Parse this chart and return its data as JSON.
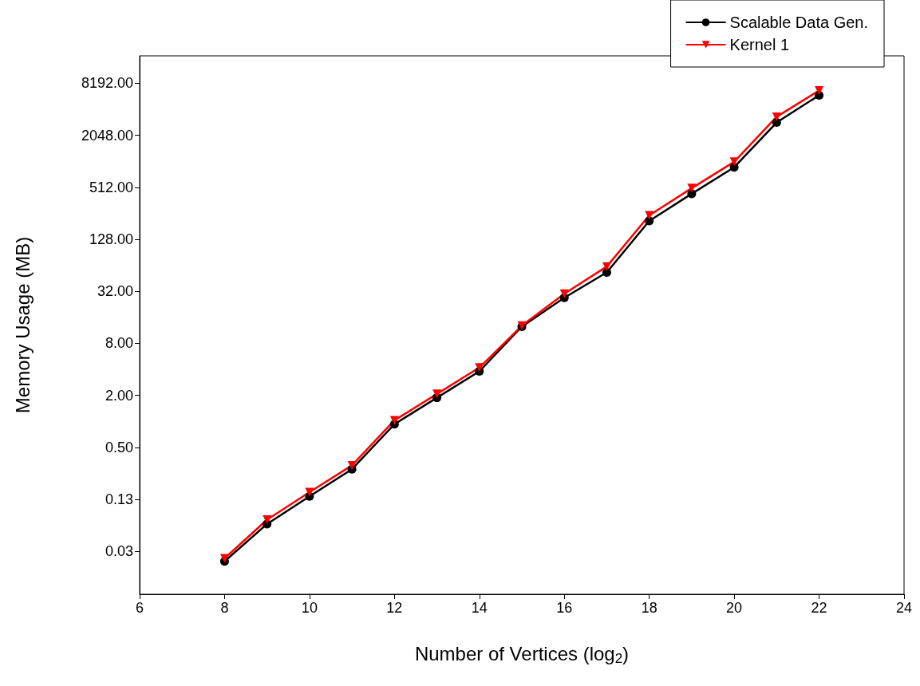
{
  "chart_data": {
    "type": "line",
    "xlabel": "Number of Vertices (log$_{2}$)",
    "ylabel": "Memory Usage (MB)",
    "x": [
      8,
      9,
      10,
      11,
      12,
      13,
      14,
      15,
      16,
      17,
      18,
      19,
      20,
      21,
      22
    ],
    "series": [
      {
        "name": "Scalable Data Gen.",
        "color": "#000000",
        "marker": "circle",
        "values": [
          0.024,
          0.065,
          0.136,
          0.28,
          0.93,
          1.88,
          3.8,
          12.5,
          27,
          53,
          209,
          431,
          873,
          2880,
          5950
        ]
      },
      {
        "name": "Kernel 1",
        "color": "#ff0000",
        "marker": "triangle",
        "values": [
          0.026,
          0.073,
          0.152,
          0.31,
          1.03,
          2.08,
          4.2,
          12.8,
          30,
          62,
          242,
          501,
          1010,
          3350,
          6740
        ]
      }
    ],
    "xlim": [
      6,
      24
    ],
    "xticks": [
      6,
      8,
      10,
      12,
      14,
      16,
      18,
      20,
      22,
      24
    ],
    "ylim": [
      0.01,
      17000
    ],
    "log": "y",
    "yticks": [
      {
        "value": 0.03125,
        "label": "0.03"
      },
      {
        "value": 0.125,
        "label": "0.13"
      },
      {
        "value": 0.5,
        "label": "0.50"
      },
      {
        "value": 2,
        "label": "2.00"
      },
      {
        "value": 8,
        "label": "8.00"
      },
      {
        "value": 32,
        "label": "32.00"
      },
      {
        "value": 128,
        "label": "128.00"
      },
      {
        "value": 512,
        "label": "512.00"
      },
      {
        "value": 2048,
        "label": "2048.00"
      },
      {
        "value": 8192,
        "label": "8192.00"
      }
    ],
    "grid": false,
    "legend": "top right",
    "line_style": "solid"
  }
}
